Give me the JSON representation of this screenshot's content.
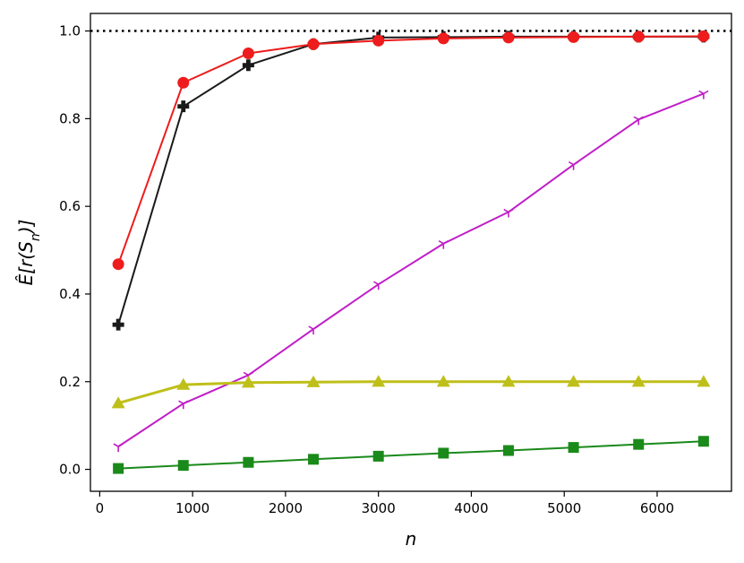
{
  "chart_data": {
    "type": "line",
    "title": "",
    "xlabel": "n",
    "ylabel": "Ê[r(S_n)]",
    "xlim": [
      -100,
      6800
    ],
    "ylim": [
      -0.05,
      1.04
    ],
    "x": [
      200,
      900,
      1600,
      2300,
      3000,
      3700,
      4400,
      5100,
      5800,
      6500
    ],
    "x_ticks": [
      0,
      1000,
      2000,
      3000,
      4000,
      5000,
      6000
    ],
    "x_tick_labels": [
      "0",
      "1000",
      "2000",
      "3000",
      "4000",
      "5000",
      "6000"
    ],
    "y_ticks": [
      0.0,
      0.2,
      0.4,
      0.6,
      0.8,
      1.0
    ],
    "y_tick_labels": [
      "0.0",
      "0.2",
      "0.4",
      "0.6",
      "0.8",
      "1.0"
    ],
    "reference_line": {
      "y": 1.0,
      "style": "dotted",
      "color": "#000000"
    },
    "grid": false,
    "legend": "none",
    "series": [
      {
        "color": "#1a1a1a",
        "marker": "plus",
        "linewidth": 2,
        "values": [
          0.33,
          0.828,
          0.922,
          0.97,
          0.985,
          0.986,
          0.987,
          0.987,
          0.987,
          0.987
        ]
      },
      {
        "color": "#ee1c1c",
        "marker": "circle",
        "linewidth": 2,
        "values": [
          0.468,
          0.882,
          0.949,
          0.97,
          0.978,
          0.983,
          0.985,
          0.986,
          0.987,
          0.988
        ]
      },
      {
        "color": "#c01ec8",
        "marker": "tri_down",
        "linewidth": 2,
        "values": [
          0.052,
          0.15,
          0.215,
          0.32,
          0.422,
          0.515,
          0.587,
          0.695,
          0.798,
          0.857
        ]
      },
      {
        "color": "#bfbf1a",
        "marker": "triangle",
        "linewidth": 3,
        "values": [
          0.151,
          0.193,
          0.198,
          0.199,
          0.2,
          0.2,
          0.2,
          0.2,
          0.2,
          0.2
        ]
      },
      {
        "color": "#1a8a1a",
        "marker": "square",
        "linewidth": 2,
        "values": [
          0.002,
          0.009,
          0.016,
          0.023,
          0.03,
          0.037,
          0.043,
          0.05,
          0.057,
          0.064
        ]
      }
    ]
  }
}
